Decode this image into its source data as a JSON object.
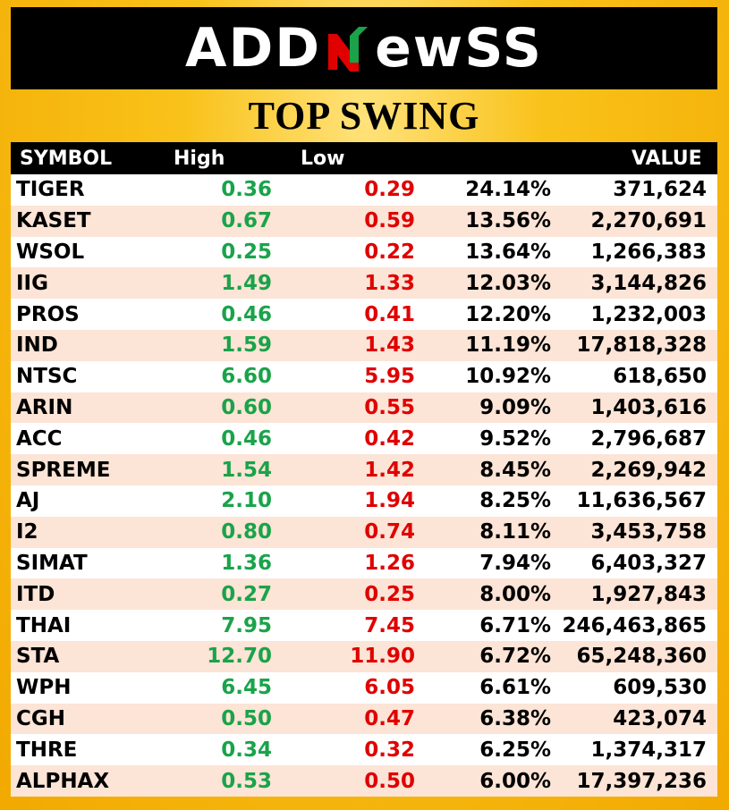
{
  "brand": {
    "logo_left": "ADD",
    "logo_mark": "N",
    "logo_right": "ewSS",
    "colors": {
      "gold": "#f2a900",
      "black": "#000000",
      "green": "#1aa34a",
      "red": "#e00000",
      "row_alt": "#fce4d6"
    }
  },
  "title": "TOP SWING",
  "table": {
    "headers": {
      "symbol": "SYMBOL",
      "high": "High",
      "low": "Low",
      "pct": "",
      "value": "VALUE"
    },
    "rows": [
      {
        "symbol": "TIGER",
        "high": "0.36",
        "low": "0.29",
        "pct": "24.14%",
        "value": "371,624"
      },
      {
        "symbol": "KASET",
        "high": "0.67",
        "low": "0.59",
        "pct": "13.56%",
        "value": "2,270,691"
      },
      {
        "symbol": "WSOL",
        "high": "0.25",
        "low": "0.22",
        "pct": "13.64%",
        "value": "1,266,383"
      },
      {
        "symbol": "IIG",
        "high": "1.49",
        "low": "1.33",
        "pct": "12.03%",
        "value": "3,144,826"
      },
      {
        "symbol": "PROS",
        "high": "0.46",
        "low": "0.41",
        "pct": "12.20%",
        "value": "1,232,003"
      },
      {
        "symbol": "IND",
        "high": "1.59",
        "low": "1.43",
        "pct": "11.19%",
        "value": "17,818,328"
      },
      {
        "symbol": "NTSC",
        "high": "6.60",
        "low": "5.95",
        "pct": "10.92%",
        "value": "618,650"
      },
      {
        "symbol": "ARIN",
        "high": "0.60",
        "low": "0.55",
        "pct": "9.09%",
        "value": "1,403,616"
      },
      {
        "symbol": "ACC",
        "high": "0.46",
        "low": "0.42",
        "pct": "9.52%",
        "value": "2,796,687"
      },
      {
        "symbol": "SPREME",
        "high": "1.54",
        "low": "1.42",
        "pct": "8.45%",
        "value": "2,269,942"
      },
      {
        "symbol": "AJ",
        "high": "2.10",
        "low": "1.94",
        "pct": "8.25%",
        "value": "11,636,567"
      },
      {
        "symbol": "I2",
        "high": "0.80",
        "low": "0.74",
        "pct": "8.11%",
        "value": "3,453,758"
      },
      {
        "symbol": "SIMAT",
        "high": "1.36",
        "low": "1.26",
        "pct": "7.94%",
        "value": "6,403,327"
      },
      {
        "symbol": "ITD",
        "high": "0.27",
        "low": "0.25",
        "pct": "8.00%",
        "value": "1,927,843"
      },
      {
        "symbol": "THAI",
        "high": "7.95",
        "low": "7.45",
        "pct": "6.71%",
        "value": "246,463,865"
      },
      {
        "symbol": "STA",
        "high": "12.70",
        "low": "11.90",
        "pct": "6.72%",
        "value": "65,248,360"
      },
      {
        "symbol": "WPH",
        "high": "6.45",
        "low": "6.05",
        "pct": "6.61%",
        "value": "609,530"
      },
      {
        "symbol": "CGH",
        "high": "0.50",
        "low": "0.47",
        "pct": "6.38%",
        "value": "423,074"
      },
      {
        "symbol": "THRE",
        "high": "0.34",
        "low": "0.32",
        "pct": "6.25%",
        "value": "1,374,317"
      },
      {
        "symbol": "ALPHAX",
        "high": "0.53",
        "low": "0.50",
        "pct": "6.00%",
        "value": "17,397,236"
      }
    ]
  }
}
